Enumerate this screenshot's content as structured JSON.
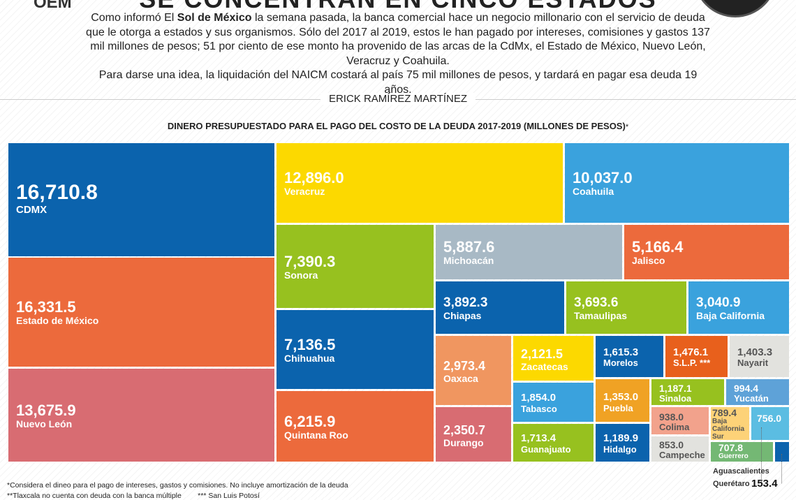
{
  "header": {
    "title": "SE CONCENTRAN EN CINCO ESTADOS",
    "logo": "OEM",
    "intro_pre": "Como informó El ",
    "intro_bold": "Sol de México",
    "intro_post": " la semana pasada, la banca comercial hace un negocio millonario con el servicio de deuda que le otorga a estados y sus organismos. Sólo del 2017 al 2019, estos le han pagado por intereses, comisiones y gastos 137 mil millones de pesos; 51 por ciento de ese monto ha provenido de las arcas de la CdMx, el Estado de México, Nuevo León, Veracruz y Coahuila.",
    "intro_2": "Para darse una idea, la liquidación del NAICM costará al país 75 mil millones de pesos, y tardará en pagar esa deuda 19 años.",
    "byline": "ERICK RAMÍREZ MARTÍNEZ"
  },
  "chart_data": {
    "type": "treemap",
    "title": "DINERO PRESUPUESTADO PARA EL PAGO DEL COSTO DE LA DEUDA 2017-2019 (MILLONES DE PESOS)",
    "title_mark": "*",
    "items": [
      {
        "name": "CDMX",
        "value": "16,710.8",
        "color": "#0b63ad"
      },
      {
        "name": "Estado de México",
        "value": "16,331.5",
        "color": "#ec6a3c"
      },
      {
        "name": "Nuevo León",
        "value": "13,675.9",
        "color": "#d86c72"
      },
      {
        "name": "Veracruz",
        "value": "12,896.0",
        "color": "#fcd900"
      },
      {
        "name": "Coahuila",
        "value": "10,037.0",
        "color": "#3aa2dd"
      },
      {
        "name": "Sonora",
        "value": "7,390.3",
        "color": "#97c11f"
      },
      {
        "name": "Michoacán",
        "value": "5,887.6",
        "color": "#a8b9c5"
      },
      {
        "name": "Jalisco",
        "value": "5,166.4",
        "color": "#ec6a3c"
      },
      {
        "name": "Chihuahua",
        "value": "7,136.5",
        "color": "#0b63ad"
      },
      {
        "name": "Quintana Roo",
        "value": "6,215.9",
        "color": "#ec6a3c"
      },
      {
        "name": "Chiapas",
        "value": "3,892.3",
        "color": "#0b63ad"
      },
      {
        "name": "Tamaulipas",
        "value": "3,693.6",
        "color": "#97c11f"
      },
      {
        "name": "Baja California",
        "value": "3,040.9",
        "color": "#3aa2dd"
      },
      {
        "name": "Oaxaca",
        "value": "2,973.4",
        "color": "#f09660"
      },
      {
        "name": "Durango",
        "value": "2,350.7",
        "color": "#d86c72"
      },
      {
        "name": "Zacatecas",
        "value": "2,121.5",
        "color": "#fcd900"
      },
      {
        "name": "Tabasco",
        "value": "1,854.0",
        "color": "#3aa2dd"
      },
      {
        "name": "Guanajuato",
        "value": "1,713.4",
        "color": "#97c11f"
      },
      {
        "name": "Morelos",
        "value": "1,615.3",
        "color": "#0b63ad"
      },
      {
        "name": "S.L.P. ***",
        "value": "1,476.1",
        "color": "#e8601c"
      },
      {
        "name": "Nayarit",
        "value": "1,403.3",
        "color": "#e2e2de",
        "dark": true
      },
      {
        "name": "Puebla",
        "value": "1,353.0",
        "color": "#f0a224"
      },
      {
        "name": "Hidalgo",
        "value": "1,189.9",
        "color": "#0b63ad"
      },
      {
        "name": "Sinaloa",
        "value": "1,187.1",
        "color": "#97c11f"
      },
      {
        "name": "Yucatán",
        "value": "994.4",
        "color": "#5ea2d8"
      },
      {
        "name": "Colima",
        "value": "938.0",
        "color": "#f2a28c",
        "dark": true
      },
      {
        "name": "Campeche",
        "value": "853.0",
        "color": "#e2e2de",
        "dark": true
      },
      {
        "name": "Baja California Sur",
        "value": "789.4",
        "color": "#fdd278",
        "dark": true
      },
      {
        "name": "Aguascalientes",
        "value": "756.0",
        "color": "#5bbde2",
        "external_name": true
      },
      {
        "name": "Guerrero",
        "value": "707.8",
        "color": "#74b874"
      },
      {
        "name": "Querétaro",
        "value": "153.4",
        "color": "#0b63ad",
        "external_name": true,
        "external_value": true
      }
    ]
  },
  "footnotes": [
    "*Considera el dineo para el pago de intereses, gastos y comisiones. No incluye amortización de la deuda",
    "**Tlaxcala no cuenta con deuda con la banca múltiple        *** San Luis Potosí"
  ]
}
